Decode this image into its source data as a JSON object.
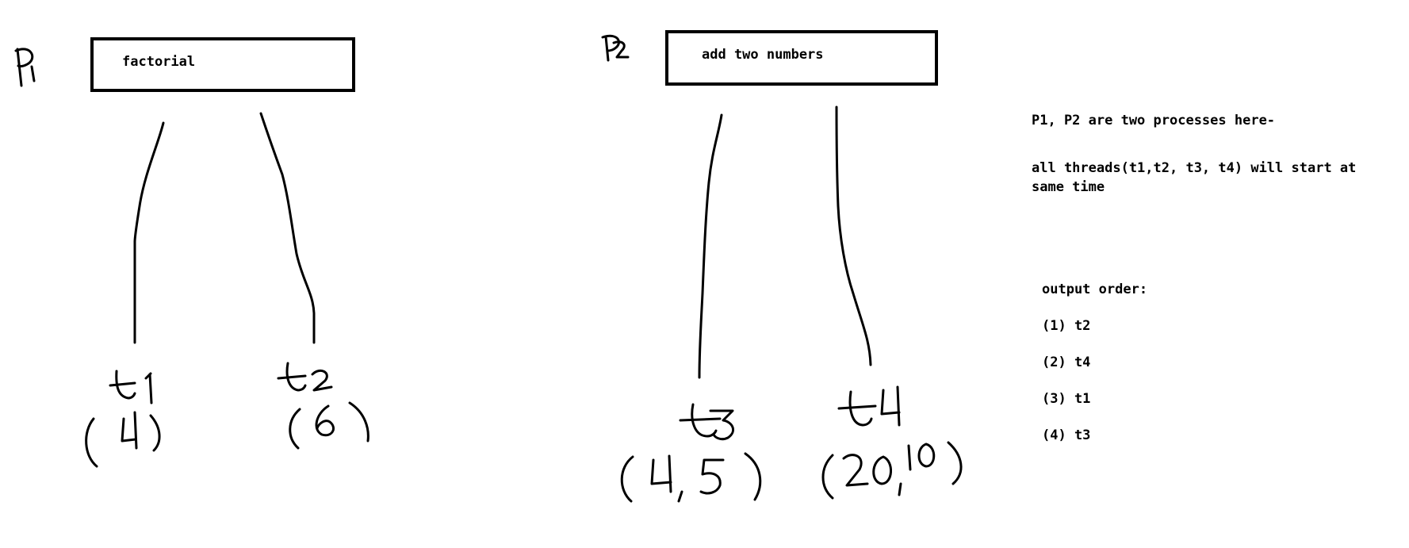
{
  "processes": {
    "p1": {
      "label": "P1",
      "box_text": "factorial",
      "threads": [
        {
          "name": "t1",
          "args": "(4)"
        },
        {
          "name": "t2",
          "args": "(6)"
        }
      ]
    },
    "p2": {
      "label": "P2",
      "box_text": "add two numbers",
      "threads": [
        {
          "name": "t3",
          "args": "(4, 5)"
        },
        {
          "name": "t4",
          "args": "(20,10)"
        }
      ]
    }
  },
  "notes": {
    "line1": "P1, P2 are two processes here-",
    "line2": "all threads(t1,t2, t3, t4) will start at same time",
    "output_header": "output order:",
    "output_items": [
      "(1) t2",
      "(2) t4",
      "(3) t1",
      "(4) t3"
    ]
  }
}
